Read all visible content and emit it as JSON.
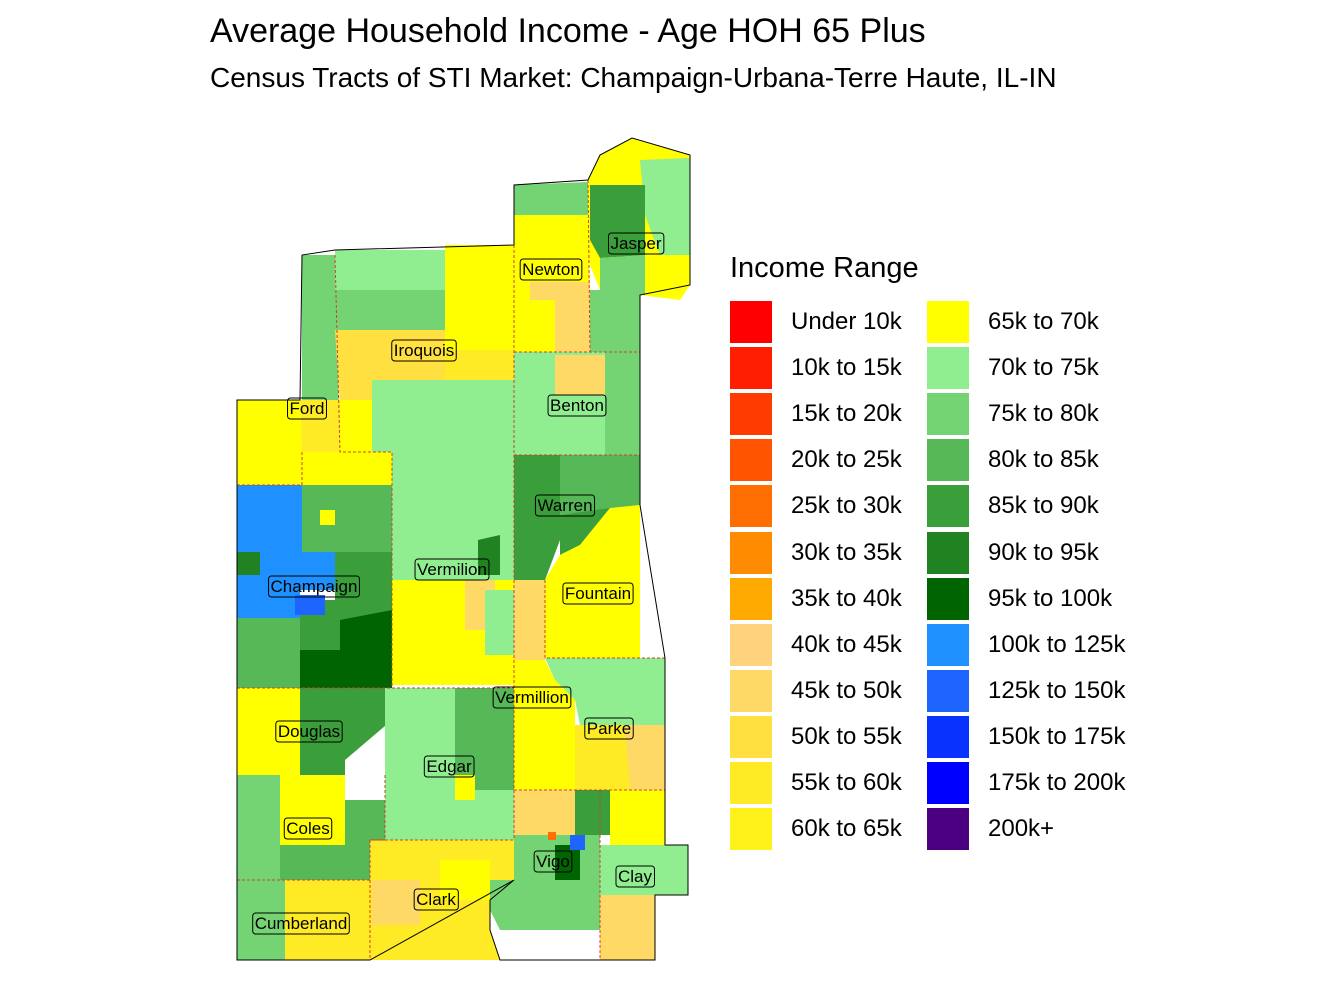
{
  "title": "Average Household Income - Age HOH 65 Plus",
  "subtitle": "Census Tracts of STI Market: Champaign-Urbana-Terre Haute, IL-IN",
  "legend": {
    "title": "Income Range",
    "items": [
      {
        "label": "Under 10k",
        "color": "#ff0000"
      },
      {
        "label": "10k to 15k",
        "color": "#ff1e00"
      },
      {
        "label": "15k to 20k",
        "color": "#ff3c00"
      },
      {
        "label": "20k to 25k",
        "color": "#ff5500"
      },
      {
        "label": "25k to 30k",
        "color": "#ff6e00"
      },
      {
        "label": "30k to 35k",
        "color": "#ff8c00"
      },
      {
        "label": "35k to 40k",
        "color": "#ffaa00"
      },
      {
        "label": "40k to 45k",
        "color": "#ffd27d"
      },
      {
        "label": "45k to 50k",
        "color": "#ffd966"
      },
      {
        "label": "50k to 55k",
        "color": "#ffe040"
      },
      {
        "label": "55k to 60k",
        "color": "#ffea26"
      },
      {
        "label": "60k to 65k",
        "color": "#fff21a"
      },
      {
        "label": "65k to 70k",
        "color": "#ffff00"
      },
      {
        "label": "70k to 75k",
        "color": "#90ee90"
      },
      {
        "label": "75k to 80k",
        "color": "#74d474"
      },
      {
        "label": "80k to 85k",
        "color": "#56b856"
      },
      {
        "label": "85k to 90k",
        "color": "#3a9e3a"
      },
      {
        "label": "90k to 95k",
        "color": "#208220"
      },
      {
        "label": "95k to 100k",
        "color": "#006400"
      },
      {
        "label": "100k to 125k",
        "color": "#1e90ff"
      },
      {
        "label": "125k to 150k",
        "color": "#1e64ff"
      },
      {
        "label": "150k to 175k",
        "color": "#0a32ff"
      },
      {
        "label": "175k to 200k",
        "color": "#0000ff"
      },
      {
        "label": "200k+",
        "color": "#4b0082"
      }
    ]
  },
  "counties": [
    {
      "name": "Jasper",
      "label": "Jasper"
    },
    {
      "name": "Newton",
      "label": "Newton"
    },
    {
      "name": "Iroquois",
      "label": "Iroquois"
    },
    {
      "name": "Benton",
      "label": "Benton"
    },
    {
      "name": "Ford",
      "label": "Ford"
    },
    {
      "name": "Warren",
      "label": "Warren"
    },
    {
      "name": "Champaign",
      "label": "Champaign"
    },
    {
      "name": "Vermilion",
      "label": "Vermilion"
    },
    {
      "name": "Fountain",
      "label": "Fountain"
    },
    {
      "name": "Vermillion",
      "label": "Vermillion"
    },
    {
      "name": "Parke",
      "label": "Parke"
    },
    {
      "name": "Douglas",
      "label": "Douglas"
    },
    {
      "name": "Edgar",
      "label": "Edgar"
    },
    {
      "name": "Coles",
      "label": "Coles"
    },
    {
      "name": "Vigo",
      "label": "Vigo"
    },
    {
      "name": "Clay",
      "label": "Clay"
    },
    {
      "name": "Clark",
      "label": "Clark"
    },
    {
      "name": "Cumberland",
      "label": "Cumberland"
    }
  ]
}
